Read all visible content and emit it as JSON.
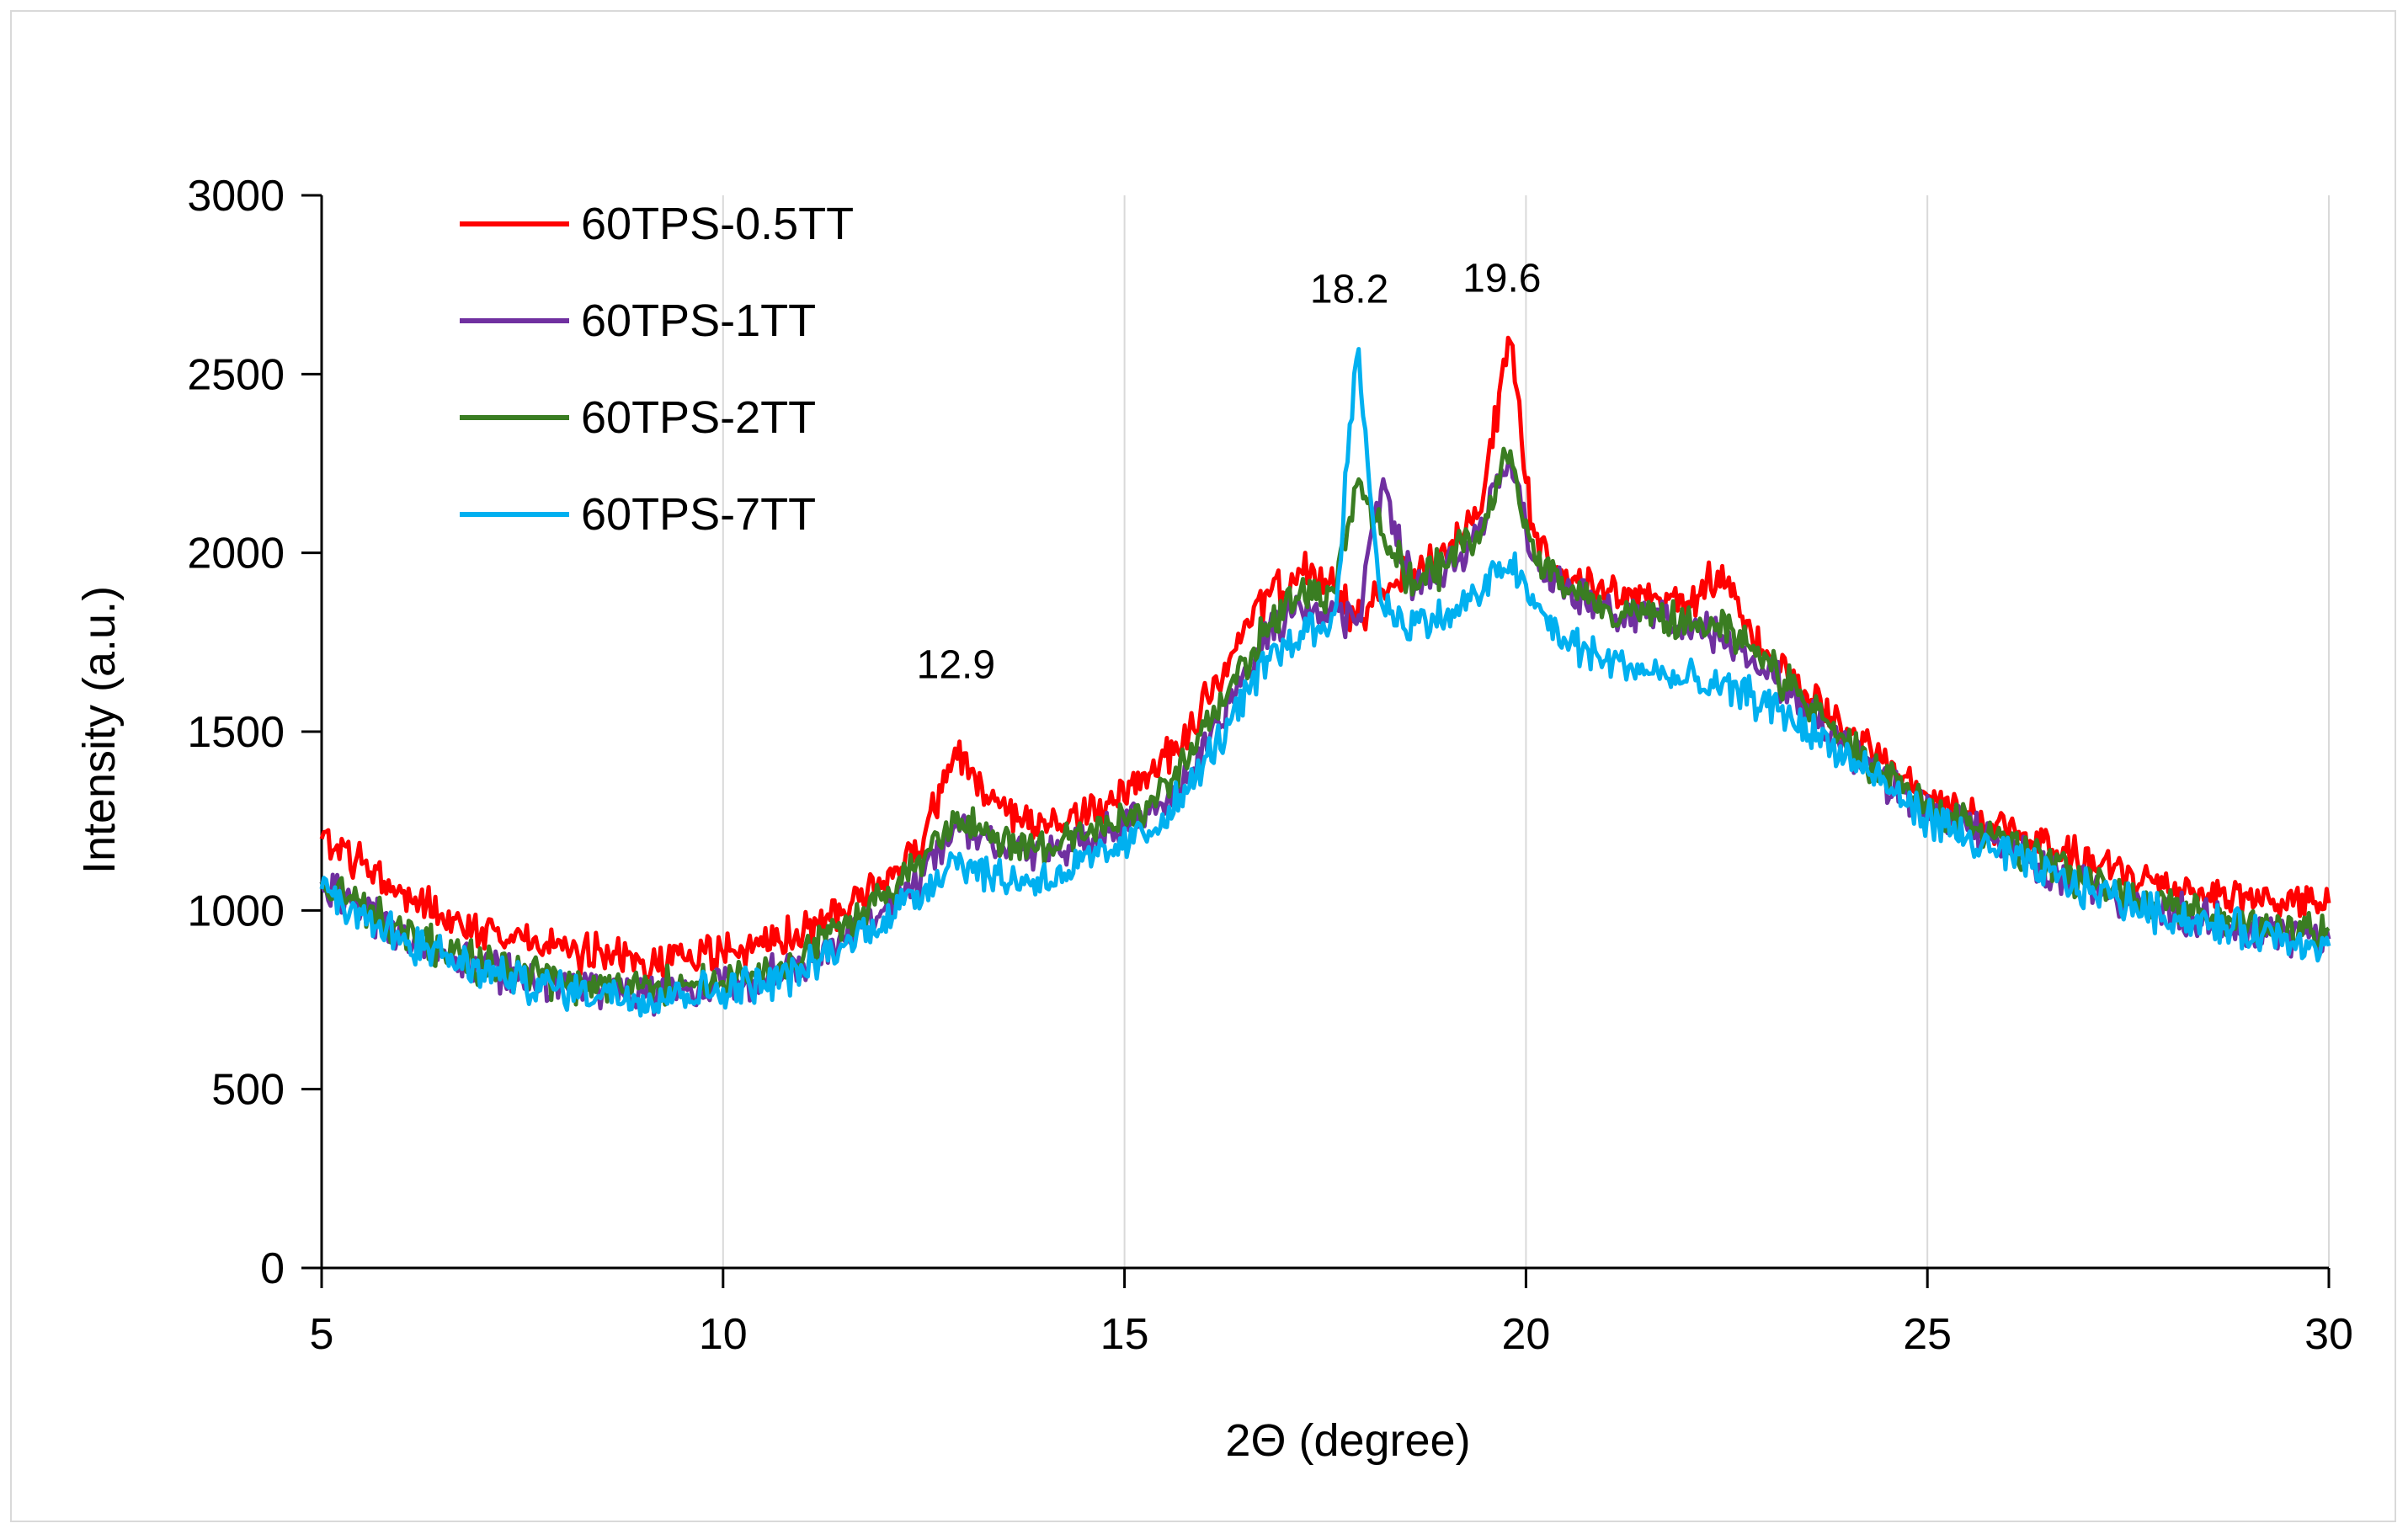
{
  "chart_data": {
    "type": "line",
    "title": "",
    "xlabel": "2Θ (degree)",
    "ylabel": "Intensity (a.u.)",
    "xlim": [
      5,
      30
    ],
    "ylim": [
      0,
      3000
    ],
    "xticks": [
      5,
      10,
      15,
      20,
      25,
      30
    ],
    "yticks": [
      0,
      500,
      1000,
      1500,
      2000,
      2500,
      3000
    ],
    "grid": "vertical",
    "legend_position": "top-left",
    "annotations": [
      {
        "text": "12.9",
        "x": 12.9,
        "y": 1650
      },
      {
        "text": "18.2",
        "x": 17.8,
        "y": 2700
      },
      {
        "text": "19.6",
        "x": 19.7,
        "y": 2730
      }
    ],
    "series": [
      {
        "name": "60TPS-0.5TT",
        "color": "#ff0000",
        "x": [
          5,
          5.5,
          6,
          6.5,
          7,
          7.5,
          8,
          8.5,
          9,
          9.5,
          10,
          10.5,
          11,
          11.5,
          12,
          12.5,
          12.9,
          13.3,
          13.8,
          14.3,
          14.8,
          15.3,
          15.8,
          16.3,
          16.8,
          17.2,
          17.6,
          17.9,
          18.2,
          18.6,
          19.0,
          19.4,
          19.8,
          20.1,
          20.5,
          21,
          21.5,
          22,
          22.4,
          22.8,
          23.3,
          23.8,
          24.3,
          24.8,
          25.3,
          25.8,
          26.3,
          26.8,
          27.3,
          27.8,
          28.3,
          28.8,
          29.3,
          29.8,
          30
        ],
        "y": [
          1200,
          1130,
          1050,
          990,
          950,
          920,
          890,
          870,
          860,
          870,
          880,
          900,
          940,
          1000,
          1080,
          1200,
          1460,
          1300,
          1230,
          1250,
          1300,
          1380,
          1500,
          1700,
          1880,
          1950,
          1900,
          1800,
          1900,
          1950,
          2000,
          2100,
          2600,
          2050,
          1950,
          1880,
          1870,
          1860,
          1950,
          1780,
          1650,
          1540,
          1440,
          1340,
          1290,
          1240,
          1190,
          1150,
          1110,
          1080,
          1060,
          1040,
          1030,
          1020,
          1020
        ]
      },
      {
        "name": "60TPS-1TT",
        "color": "#7030a0",
        "x": [
          5,
          5.5,
          6,
          6.5,
          7,
          7.5,
          8,
          8.5,
          9,
          9.5,
          10,
          10.5,
          11,
          11.5,
          12,
          12.5,
          12.9,
          13.3,
          13.8,
          14.3,
          14.8,
          15.3,
          15.8,
          16.3,
          16.8,
          17.2,
          17.6,
          17.9,
          18.2,
          18.6,
          19.0,
          19.4,
          19.8,
          20.1,
          20.5,
          21,
          21.5,
          22,
          22.4,
          22.8,
          23.3,
          23.8,
          24.3,
          24.8,
          25.3,
          25.8,
          26.3,
          26.8,
          27.3,
          27.8,
          28.3,
          28.8,
          29.3,
          29.8,
          30
        ],
        "y": [
          1080,
          1000,
          930,
          880,
          840,
          810,
          790,
          780,
          770,
          775,
          790,
          810,
          850,
          920,
          1000,
          1100,
          1240,
          1200,
          1150,
          1180,
          1220,
          1270,
          1380,
          1580,
          1790,
          1850,
          1830,
          1800,
          2180,
          1900,
          1950,
          2050,
          2280,
          1980,
          1900,
          1850,
          1820,
          1800,
          1780,
          1700,
          1600,
          1500,
          1400,
          1300,
          1260,
          1200,
          1140,
          1090,
          1050,
          1010,
          980,
          960,
          940,
          930,
          920
        ]
      },
      {
        "name": "60TPS-2TT",
        "color": "#3a7d22",
        "x": [
          5,
          5.5,
          6,
          6.5,
          7,
          7.5,
          8,
          8.5,
          9,
          9.5,
          10,
          10.5,
          11,
          11.5,
          12,
          12.5,
          12.9,
          13.3,
          13.8,
          14.3,
          14.8,
          15.3,
          15.8,
          16.3,
          16.8,
          17.2,
          17.6,
          17.9,
          18.2,
          18.6,
          19.0,
          19.4,
          19.8,
          20.1,
          20.5,
          21,
          21.5,
          22,
          22.4,
          22.8,
          23.3,
          23.8,
          24.3,
          24.8,
          25.3,
          25.8,
          26.3,
          26.8,
          27.3,
          27.8,
          28.3,
          28.8,
          29.3,
          29.8,
          30
        ],
        "y": [
          1080,
          1010,
          940,
          890,
          850,
          820,
          800,
          790,
          785,
          790,
          800,
          820,
          870,
          960,
          1050,
          1140,
          1250,
          1220,
          1180,
          1200,
          1240,
          1290,
          1420,
          1620,
          1800,
          1900,
          1880,
          2200,
          2050,
          1920,
          1960,
          2060,
          2290,
          1980,
          1900,
          1850,
          1830,
          1810,
          1800,
          1730,
          1620,
          1510,
          1410,
          1310,
          1270,
          1210,
          1150,
          1100,
          1060,
          1020,
          990,
          970,
          950,
          940,
          950
        ]
      },
      {
        "name": "60TPS-7TT",
        "color": "#00b0f0",
        "x": [
          5,
          5.5,
          6,
          6.5,
          7,
          7.5,
          8,
          8.5,
          9,
          9.5,
          10,
          10.5,
          11,
          11.5,
          12,
          12.5,
          12.9,
          13.3,
          13.8,
          14.3,
          14.8,
          15.3,
          15.8,
          16.3,
          16.8,
          17.2,
          17.6,
          17.9,
          18.2,
          18.6,
          19.0,
          19.4,
          19.8,
          20.1,
          20.5,
          21,
          21.5,
          22,
          22.4,
          22.8,
          23.3,
          23.8,
          24.3,
          24.8,
          25.3,
          25.8,
          26.3,
          26.8,
          27.3,
          27.8,
          28.3,
          28.8,
          29.3,
          29.8,
          30
        ],
        "y": [
          1060,
          990,
          920,
          870,
          830,
          800,
          780,
          770,
          760,
          770,
          780,
          800,
          830,
          900,
          980,
          1060,
          1150,
          1100,
          1080,
          1110,
          1160,
          1220,
          1340,
          1520,
          1700,
          1780,
          1800,
          2570,
          1850,
          1800,
          1820,
          1880,
          1980,
          1850,
          1750,
          1700,
          1670,
          1640,
          1620,
          1600,
          1540,
          1460,
          1380,
          1290,
          1220,
          1170,
          1120,
          1070,
          1040,
          1000,
          970,
          950,
          930,
          910,
          900
        ]
      }
    ]
  }
}
